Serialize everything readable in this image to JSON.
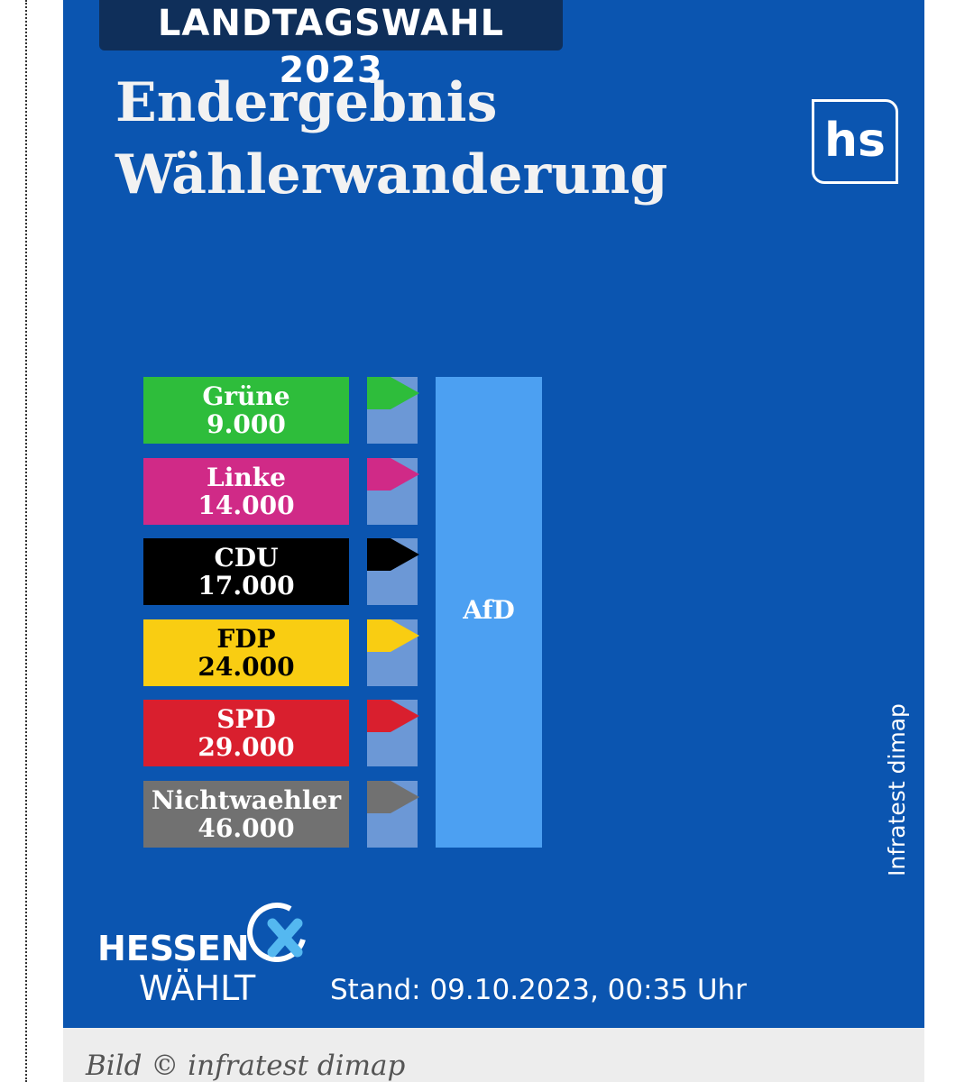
{
  "header": {
    "kicker": "LANDTAGSWAHL 2023",
    "title_line1": "Endergebnis",
    "title_line2": "Wählerwanderung",
    "logo": "hs"
  },
  "colors": {
    "background": "#0b55b0",
    "target": "#4ca0f2",
    "connector": "#6c98d6"
  },
  "chart_data": {
    "type": "flow",
    "target": "AfD",
    "flows": [
      {
        "source": "Grüne",
        "value": "9.000",
        "color": "#2ebd3b",
        "text_color": "#ffffff"
      },
      {
        "source": "Linke",
        "value": "14.000",
        "color": "#d02a87",
        "text_color": "#ffffff"
      },
      {
        "source": "CDU",
        "value": "17.000",
        "color": "#000000",
        "text_color": "#ffffff"
      },
      {
        "source": "FDP",
        "value": "24.000",
        "color": "#f9cd12",
        "text_color": "#000000"
      },
      {
        "source": "SPD",
        "value": "29.000",
        "color": "#d91f2e",
        "text_color": "#ffffff"
      },
      {
        "source": "Nichtwaehler",
        "value": "46.000",
        "color": "#717171",
        "text_color": "#ffffff"
      }
    ]
  },
  "source_credit": "Infratest dimap",
  "footer": {
    "logo_line1": "HESSEN",
    "logo_line2": "WÄHLT",
    "timestamp": "Stand: 09.10.2023, 00:35 Uhr"
  },
  "caption": "Bild © infratest dimap"
}
